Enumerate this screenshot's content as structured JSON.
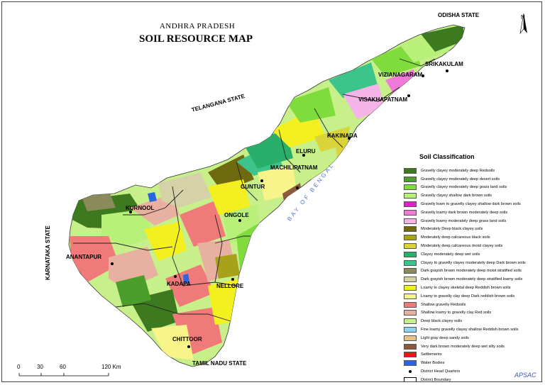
{
  "header": {
    "subtitle": "ANDHRA PRADESH",
    "title": "SOIL RESOURCE MAP"
  },
  "north": "N",
  "states": {
    "odisha": "ODISHA STATE",
    "telangana": "TELANGANA STATE",
    "karnataka": "KARNATAKA STATE",
    "tamil_nadu": "TAMIL NADU STATE"
  },
  "bay": "BAY OF BENGAL",
  "districts": {
    "srikakulam": "SRIKAKULAM",
    "vizianagaram": "VIZIANAGARAM",
    "visakhapatnam": "VISAKHAPATNAM",
    "kakinada": "KAKINADA",
    "eluru": "ELURU",
    "machilipatnam": "MACHILIPATNAM",
    "guntur": "GUNTUR",
    "ongole": "ONGOLE",
    "kurnool": "KURNOOL",
    "anantapur": "ANANTAPUR",
    "kadapa": "KADAPA",
    "nellore": "NELLORE",
    "chittoor": "CHITTOOR"
  },
  "legend": {
    "title": "Soil Classification",
    "items": [
      {
        "label": "Gravelly clayey moderately deep Redsoils",
        "color": "#3d7a1f"
      },
      {
        "label": "Gravelly clayey moderately deep desert soils",
        "color": "#4c9e2a"
      },
      {
        "label": "Gravelly clayey moderately deep grass land soils",
        "color": "#7fdc3c"
      },
      {
        "label": "Gravelly clayey shallow dark brown soils",
        "color": "#b8f07a"
      },
      {
        "label": "Gravelly loam to gravelly clayey  shallow dark brown soils",
        "color": "#e020c8"
      },
      {
        "label": "Gravelly loamy dark brown moderately deep soils",
        "color": "#f07ad8"
      },
      {
        "label": "Gravelly loamy moderately deep grass land soils",
        "color": "#f5b4e8"
      },
      {
        "label": "Moderately Deep black clayey soils",
        "color": "#6f6a10"
      },
      {
        "label": "Moderately deep calcareous black soils",
        "color": "#a8a21a"
      },
      {
        "label": "Moderately deep calcareous moist clayey soils",
        "color": "#d8d43a"
      },
      {
        "label": "Clayey moderately deep wet soils",
        "color": "#2aaf6a"
      },
      {
        "label": "Clayey to  gravelly clayey  moderately deep Dark brown soils",
        "color": "#3cc48c"
      },
      {
        "label": "Dark grayish brown moderately deep moist stratified soils",
        "color": "#8a8a5a"
      },
      {
        "label": "Dark grayish brown moderately deep stratified loamy soils",
        "color": "#d6d2a8"
      },
      {
        "label": "Loamy to clayey skeletal deep Reddish brown soils",
        "color": "#f4f020"
      },
      {
        "label": "Loamy to gravelly clay deep Dark reddish brown soils",
        "color": "#f8f48a"
      },
      {
        "label": "Shallow gravelly Redsoils",
        "color": "#f07a7a"
      },
      {
        "label": "Shallow loamy to gravelly clay Red soils",
        "color": "#e8b0a0"
      },
      {
        "label": "Deep black clayey soils",
        "color": "#c8f08a"
      },
      {
        "label": "Fine loamy gravelly clayey shallow Reddish brown soils",
        "color": "#8ad8f0"
      },
      {
        "label": "Light gray deep sandy soils",
        "color": "#e8c488"
      },
      {
        "label": "Very dark brown moderately deep wet silty soils",
        "color": "#8a5a3a"
      },
      {
        "label": "Settlements",
        "color": "#e81818"
      },
      {
        "label": "Water Bodies",
        "color": "#2a66e0"
      },
      {
        "label": "District Head Quarters",
        "color": "#000000"
      },
      {
        "label": "District Boundary",
        "color": "#ffffff"
      }
    ]
  },
  "scale": {
    "ticks": [
      "0",
      "30",
      "60",
      "120 Km"
    ]
  },
  "credit": "APSAC"
}
